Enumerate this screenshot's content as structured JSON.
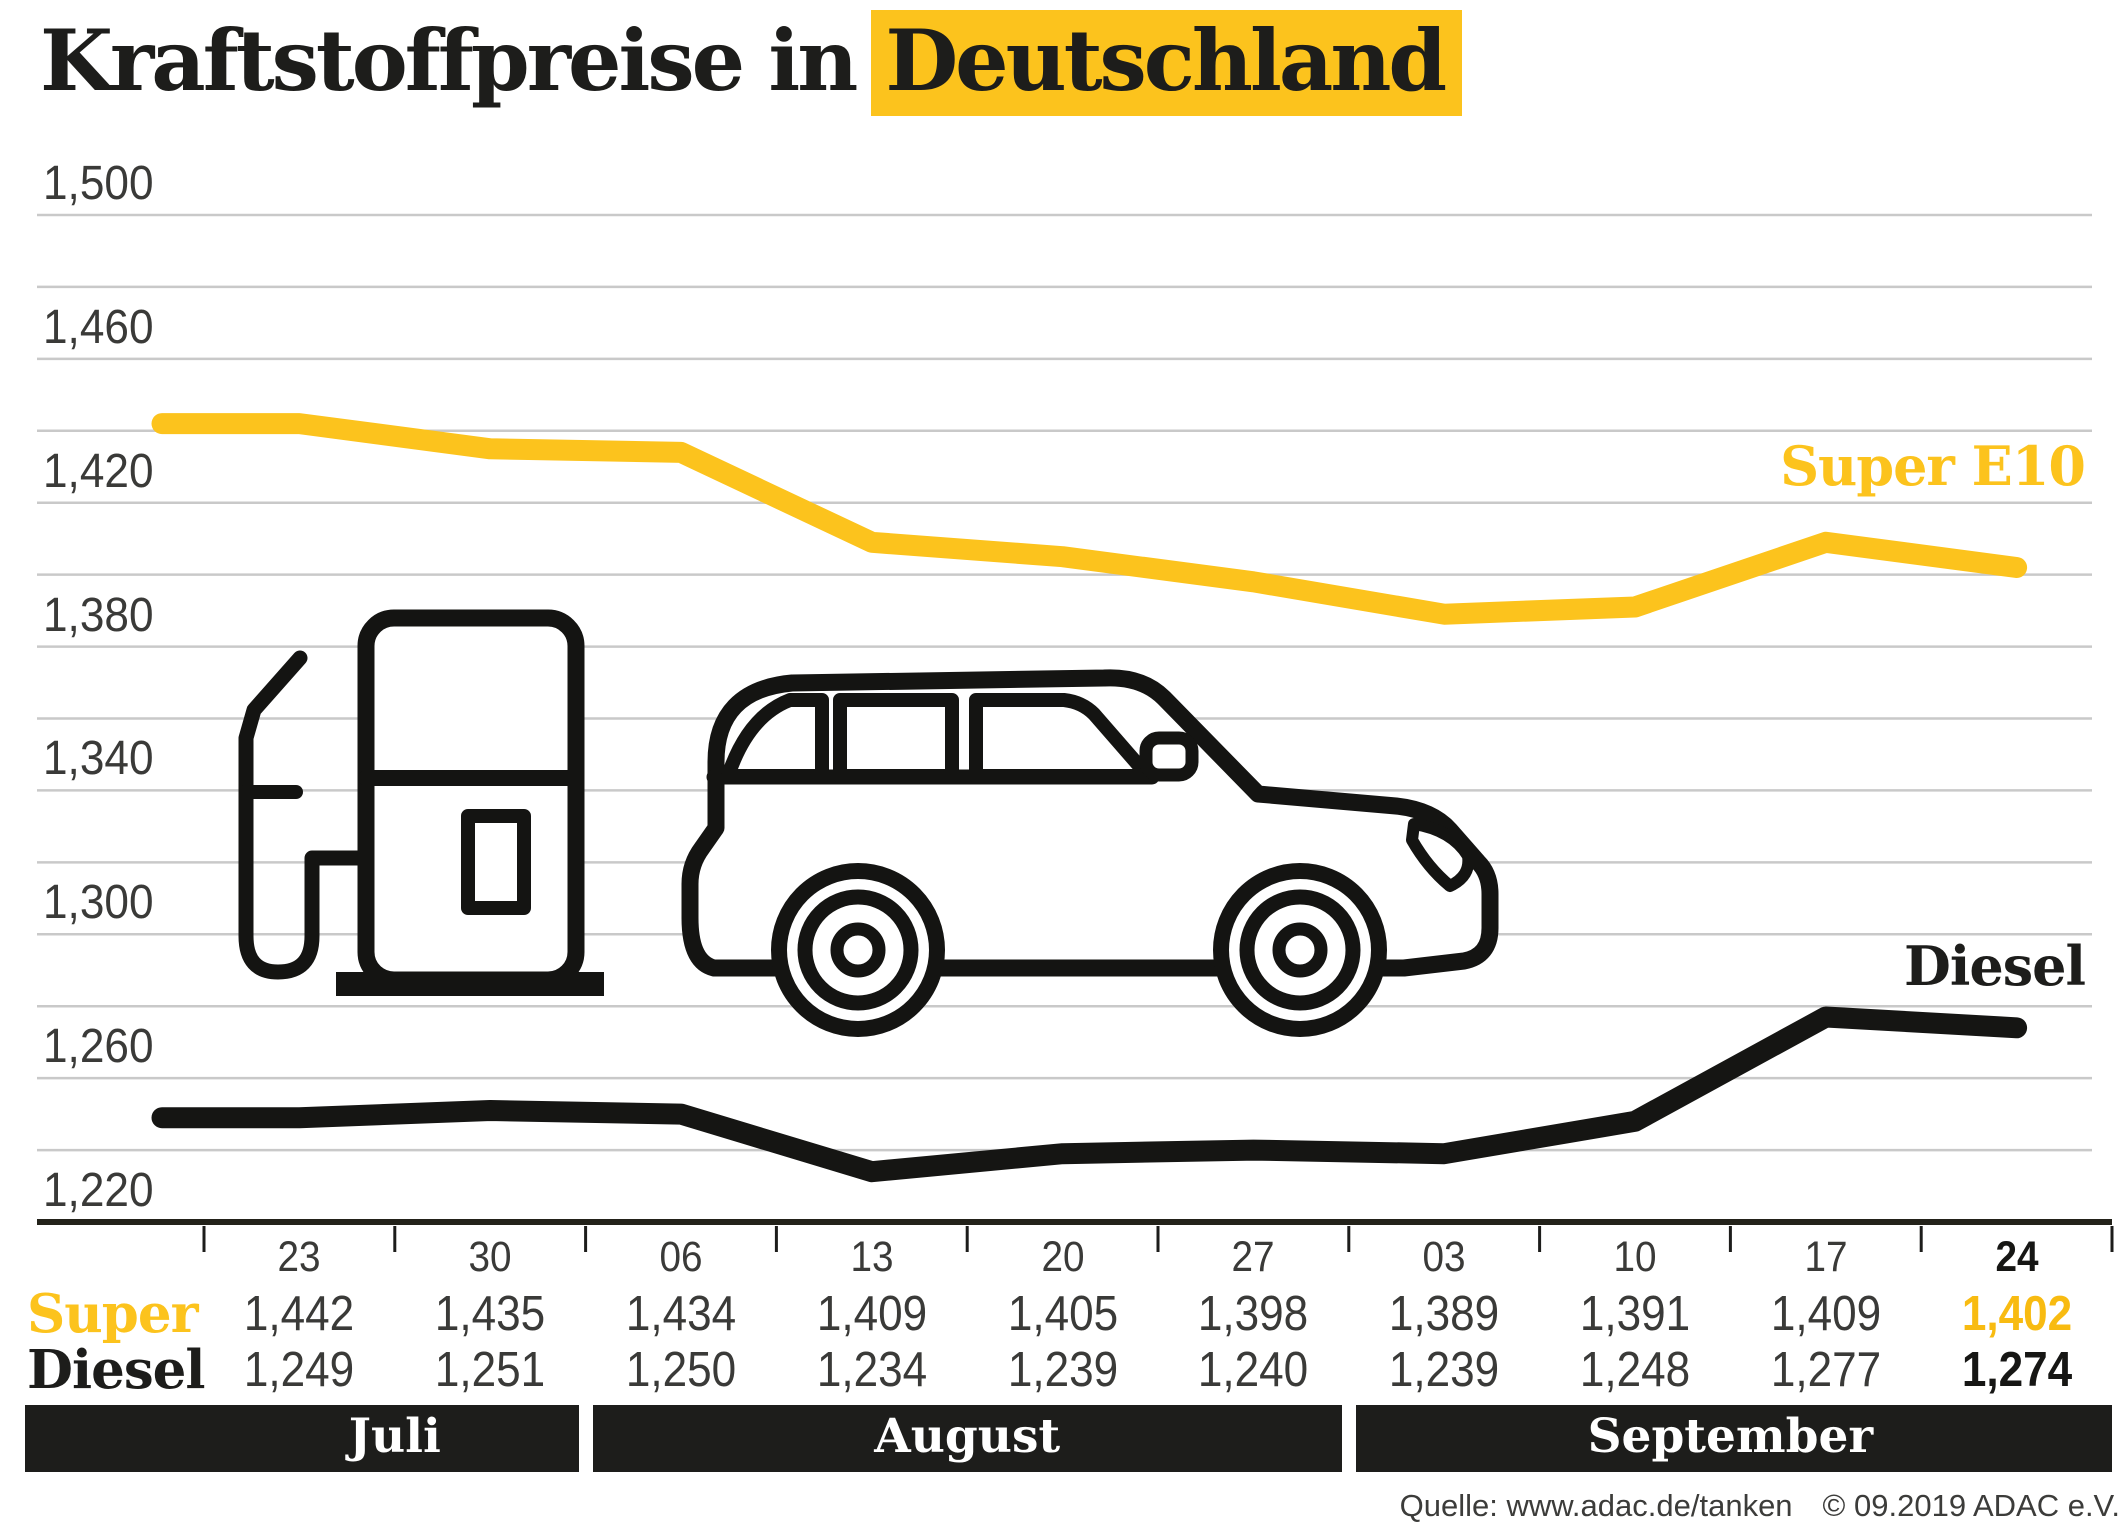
{
  "page": {
    "background": "#ffffff"
  },
  "title": {
    "plain": "Kraftstoffpreise in",
    "highlight": "Deutschland"
  },
  "colors": {
    "accent_yellow": "#fcc31d",
    "ink": "#1d1d1b",
    "value_gray": "#3a3a38",
    "gridline": "#c9c9c9",
    "axis": "#23221a",
    "band_bg": "#1d1d1b",
    "band_text": "#ffffff",
    "diesel_line": "#151513"
  },
  "chart_data": {
    "type": "line",
    "title": "Kraftstoffpreise in Deutschland",
    "xlabel": "",
    "ylabel": "",
    "grid": "horizontal",
    "legend_position": "inline-right",
    "ylim": [
      1220,
      1500
    ],
    "ytick_step": 40,
    "grid_step": 20,
    "yticks": [
      {
        "value": 1500,
        "label": "1,500"
      },
      {
        "value": 1460,
        "label": "1,460"
      },
      {
        "value": 1420,
        "label": "1,420"
      },
      {
        "value": 1380,
        "label": "1,380"
      },
      {
        "value": 1340,
        "label": "1,340"
      },
      {
        "value": 1300,
        "label": "1,300"
      },
      {
        "value": 1260,
        "label": "1,260"
      },
      {
        "value": 1220,
        "label": "1,220"
      }
    ],
    "x_tick_labels": [
      "23",
      "30",
      "06",
      "13",
      "20",
      "27",
      "03",
      "10",
      "17",
      "24"
    ],
    "months": [
      {
        "label": "Juli",
        "startCol": 0,
        "endCol": 2
      },
      {
        "label": "August",
        "startCol": 2,
        "endCol": 6
      },
      {
        "label": "September",
        "startCol": 6,
        "endCol": 10
      }
    ],
    "series": [
      {
        "name": "Super",
        "line_label": "Super E10",
        "color": "#fcc31d",
        "values": [
          1442,
          1435,
          1434,
          1409,
          1405,
          1398,
          1389,
          1391,
          1409,
          1402
        ],
        "display": [
          "1,442",
          "1,435",
          "1,434",
          "1,409",
          "1,405",
          "1,398",
          "1,389",
          "1,391",
          "1,409",
          "1,402"
        ]
      },
      {
        "name": "Diesel",
        "line_label": "Diesel",
        "color": "#151513",
        "values": [
          1249,
          1251,
          1250,
          1234,
          1239,
          1240,
          1239,
          1248,
          1277,
          1274
        ],
        "display": [
          "1,249",
          "1,251",
          "1,250",
          "1,234",
          "1,239",
          "1,240",
          "1,239",
          "1,248",
          "1,277",
          "1,274"
        ]
      }
    ]
  },
  "table": {
    "row_labels": {
      "super": "Super",
      "diesel": "Diesel"
    }
  },
  "source": {
    "quelle": "Quelle: www.adac.de/tanken",
    "copyright": "© 09.2019  ADAC e.V."
  }
}
